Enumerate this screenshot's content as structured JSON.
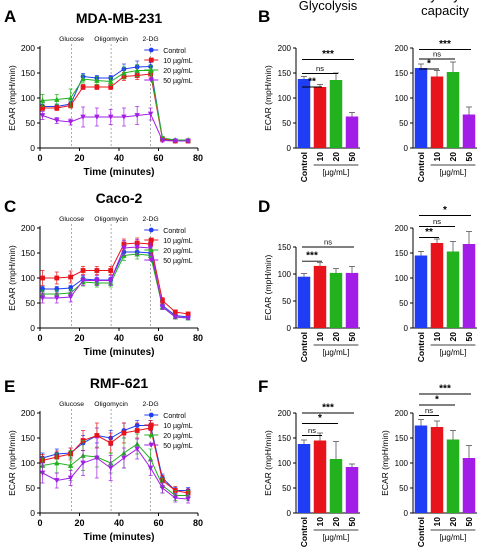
{
  "colors": {
    "control": "#1f3df5",
    "c10": "#e8141c",
    "c20": "#22b21e",
    "c50": "#a21ee6",
    "axis": "#000000",
    "dash": "#888888"
  },
  "chart_data": [
    {
      "panel": "A",
      "type": "line",
      "title": "MDA-MB-231",
      "xlabel": "Time (minutes)",
      "ylabel": "ECAR (mpH/min)",
      "xlim": [
        0,
        80
      ],
      "ylim": [
        0,
        200
      ],
      "xticks": [
        "0",
        "20",
        "40",
        "60",
        "80"
      ],
      "yticks": [
        "0",
        "50",
        "100",
        "150",
        "200"
      ],
      "annotations": [
        {
          "text": "Glucose",
          "x": 16
        },
        {
          "text": "Oligomycin",
          "x": 36
        },
        {
          "text": "2-DG",
          "x": 56
        }
      ],
      "x": [
        1.3,
        8.5,
        15.5,
        21.8,
        28.8,
        35.8,
        42.5,
        49.2,
        56,
        62,
        68.5,
        75
      ],
      "series": [
        {
          "name": "Control",
          "values": [
            83,
            83,
            88,
            143,
            140,
            140,
            158,
            162,
            163,
            19,
            15,
            15
          ],
          "errors": [
            5,
            5,
            5,
            6,
            5,
            5,
            10,
            12,
            8,
            3,
            2,
            2
          ]
        },
        {
          "name": "10 µg/mL",
          "values": [
            80,
            80,
            85,
            122,
            122,
            122,
            143,
            145,
            148,
            18,
            14,
            14
          ],
          "errors": [
            5,
            5,
            5,
            5,
            5,
            5,
            8,
            8,
            8,
            2,
            2,
            2
          ]
        },
        {
          "name": "20 µg/mL",
          "values": [
            95,
            97,
            100,
            138,
            135,
            133,
            150,
            155,
            155,
            20,
            16,
            16
          ],
          "errors": [
            12,
            10,
            18,
            8,
            8,
            8,
            12,
            12,
            10,
            3,
            2,
            2
          ]
        },
        {
          "name": "50 µg/mL",
          "values": [
            65,
            55,
            52,
            62,
            62,
            62,
            62,
            65,
            68,
            15,
            14,
            14
          ],
          "errors": [
            8,
            6,
            6,
            20,
            18,
            15,
            18,
            18,
            12,
            3,
            2,
            2
          ]
        }
      ]
    },
    {
      "panel": "B",
      "type": "bar",
      "title": "Glycolysis",
      "ylabel": "ECAR (mpH/min)",
      "categories": [
        "Control",
        "10",
        "20",
        "50"
      ],
      "group_label": "[µg/mL]",
      "ylim": [
        0,
        200
      ],
      "yticks": [
        "0",
        "50",
        "100",
        "150",
        "200"
      ],
      "values": [
        138,
        122,
        136,
        63
      ],
      "errors": [
        5,
        5,
        14,
        8
      ],
      "significance": [
        {
          "pair": [
            0,
            1
          ],
          "label": "**",
          "level": 0.61
        },
        {
          "pair": [
            0,
            2
          ],
          "label": "ns",
          "level": 0.745
        },
        {
          "pair": [
            0,
            3
          ],
          "label": "***",
          "level": 0.885
        }
      ]
    },
    {
      "panel": "B2",
      "type": "bar",
      "title": "Glycolytic capacity",
      "ylabel": "",
      "categories": [
        "Control",
        "10",
        "20",
        "50"
      ],
      "group_label": "[µg/mL]",
      "ylim": [
        0,
        200
      ],
      "yticks": [
        "0",
        "50",
        "100",
        "150",
        "200"
      ],
      "values": [
        160,
        143,
        152,
        67
      ],
      "errors": [
        8,
        12,
        20,
        15
      ],
      "significance": [
        {
          "pair": [
            0,
            1
          ],
          "label": "*",
          "level": 0.79
        },
        {
          "pair": [
            0,
            2
          ],
          "label": "ns",
          "level": 0.89
        },
        {
          "pair": [
            0,
            3
          ],
          "label": "***",
          "level": 0.985
        }
      ]
    },
    {
      "panel": "C",
      "type": "line",
      "title": "Caco-2",
      "xlabel": "Time (minutes)",
      "ylabel": "ECAR (mpH/min)",
      "xlim": [
        0,
        80
      ],
      "ylim": [
        0,
        200
      ],
      "xticks": [
        "0",
        "20",
        "40",
        "60",
        "80"
      ],
      "yticks": [
        "0",
        "50",
        "100",
        "150",
        "200"
      ],
      "annotations": [
        {
          "text": "Glucose",
          "x": 16
        },
        {
          "text": "Oligomycin",
          "x": 36
        },
        {
          "text": "2-DG",
          "x": 56
        }
      ],
      "x": [
        1.3,
        8.5,
        15.5,
        21.8,
        28.8,
        35.8,
        42.5,
        49.2,
        56,
        62,
        68.5,
        75
      ],
      "series": [
        {
          "name": "Control",
          "values": [
            78,
            78,
            80,
            98,
            96,
            96,
            152,
            152,
            150,
            45,
            25,
            22
          ],
          "errors": [
            5,
            5,
            5,
            6,
            5,
            5,
            8,
            8,
            8,
            5,
            3,
            3
          ]
        },
        {
          "name": "10 µg/mL",
          "values": [
            100,
            100,
            102,
            115,
            115,
            115,
            168,
            170,
            168,
            55,
            32,
            28
          ],
          "errors": [
            15,
            12,
            12,
            8,
            8,
            8,
            10,
            10,
            10,
            6,
            4,
            4
          ]
        },
        {
          "name": "20 µg/mL",
          "values": [
            68,
            68,
            70,
            92,
            90,
            90,
            145,
            148,
            145,
            42,
            22,
            20
          ],
          "errors": [
            8,
            8,
            8,
            8,
            8,
            8,
            10,
            10,
            10,
            5,
            3,
            3
          ]
        },
        {
          "name": "50 µg/mL",
          "values": [
            60,
            60,
            62,
            95,
            95,
            95,
            160,
            162,
            160,
            42,
            22,
            20
          ],
          "errors": [
            10,
            10,
            10,
            10,
            10,
            10,
            15,
            15,
            15,
            5,
            3,
            3
          ]
        }
      ]
    },
    {
      "panel": "D",
      "type": "bar",
      "title": "",
      "ylabel": "ECAR (mpH/min)",
      "categories": [
        "Control",
        "10",
        "20",
        "50"
      ],
      "group_label": "[µg/mL]",
      "ylim": [
        0,
        150
      ],
      "yticks": [
        "0",
        "50",
        "100",
        "150"
      ],
      "values": [
        95,
        115,
        102,
        102
      ],
      "errors": [
        6,
        6,
        8,
        12
      ],
      "significance": [
        {
          "pair": [
            0,
            1
          ],
          "label": "***",
          "level": 0.825
        },
        {
          "pair": [
            0,
            3
          ],
          "label": "ns",
          "level": 1.0
        }
      ]
    },
    {
      "panel": "D2",
      "type": "bar",
      "title": "",
      "ylabel": "",
      "categories": [
        "Control",
        "10",
        "20",
        "50"
      ],
      "group_label": "[µg/mL]",
      "ylim": [
        0,
        200
      ],
      "yticks": [
        "0",
        "50",
        "100",
        "150",
        "200"
      ],
      "values": [
        145,
        170,
        153,
        168
      ],
      "errors": [
        8,
        8,
        20,
        25
      ],
      "significance": [
        {
          "pair": [
            0,
            1
          ],
          "label": "**",
          "level": 0.905
        },
        {
          "pair": [
            0,
            2
          ],
          "label": "ns",
          "level": 1.015
        },
        {
          "pair": [
            0,
            3
          ],
          "label": "*",
          "level": 1.125
        }
      ]
    },
    {
      "panel": "E",
      "type": "line",
      "title": "RMF-621",
      "xlabel": "Time (minutes)",
      "ylabel": "ECAR (mpH/min)",
      "xlim": [
        0,
        80
      ],
      "ylim": [
        0,
        200
      ],
      "xticks": [
        "0",
        "20",
        "40",
        "60",
        "80"
      ],
      "yticks": [
        "0",
        "50",
        "100",
        "150",
        "200"
      ],
      "annotations": [
        {
          "text": "Glucose",
          "x": 16
        },
        {
          "text": "Oligomycin",
          "x": 36
        },
        {
          "text": "2-DG",
          "x": 56
        }
      ],
      "x": [
        1.3,
        8.5,
        15.5,
        21.8,
        28.8,
        35.8,
        42.5,
        49.2,
        56,
        62,
        68.5,
        75
      ],
      "series": [
        {
          "name": "Control",
          "values": [
            110,
            118,
            120,
            140,
            155,
            150,
            165,
            175,
            175,
            70,
            45,
            45
          ],
          "errors": [
            10,
            10,
            10,
            15,
            15,
            15,
            15,
            10,
            10,
            8,
            6,
            6
          ]
        },
        {
          "name": "10 µg/mL",
          "values": [
            105,
            112,
            118,
            145,
            155,
            140,
            160,
            165,
            170,
            65,
            45,
            40
          ],
          "errors": [
            12,
            12,
            12,
            20,
            25,
            20,
            20,
            15,
            15,
            10,
            8,
            8
          ]
        },
        {
          "name": "20 µg/mL",
          "values": [
            95,
            100,
            95,
            115,
            112,
            100,
            120,
            138,
            108,
            55,
            35,
            35
          ],
          "errors": [
            15,
            20,
            30,
            30,
            20,
            20,
            30,
            20,
            20,
            15,
            10,
            10
          ]
        },
        {
          "name": "50 µg/mL",
          "values": [
            80,
            65,
            70,
            100,
            110,
            90,
            110,
            128,
            90,
            50,
            30,
            28
          ],
          "errors": [
            20,
            15,
            15,
            25,
            40,
            25,
            20,
            20,
            15,
            10,
            8,
            8
          ]
        }
      ]
    },
    {
      "panel": "F",
      "type": "bar",
      "title": "",
      "ylabel": "ECAR (mpH/min)",
      "categories": [
        "Control",
        "10",
        "20",
        "50"
      ],
      "group_label": "[µg/mL]",
      "ylim": [
        0,
        200
      ],
      "yticks": [
        "0",
        "50",
        "100",
        "150",
        "200"
      ],
      "values": [
        138,
        145,
        108,
        92
      ],
      "errors": [
        8,
        15,
        35,
        6
      ],
      "significance": [
        {
          "pair": [
            0,
            1
          ],
          "label": "ns",
          "level": 0.775
        },
        {
          "pair": [
            0,
            2
          ],
          "label": "*",
          "level": 0.895
        },
        {
          "pair": [
            0,
            3
          ],
          "label": "***",
          "level": 1.0
        }
      ]
    },
    {
      "panel": "F2",
      "type": "bar",
      "title": "",
      "ylabel": "ECAR (mpH/min)",
      "categories": [
        "Control",
        "10",
        "20",
        "50"
      ],
      "group_label": "[µg/mL]",
      "ylim": [
        0,
        200
      ],
      "yticks": [
        "0",
        "50",
        "100",
        "150",
        "200"
      ],
      "values": [
        175,
        172,
        147,
        110
      ],
      "errors": [
        12,
        12,
        18,
        25
      ],
      "significance": [
        {
          "pair": [
            0,
            1
          ],
          "label": "ns",
          "level": 0.975
        },
        {
          "pair": [
            0,
            2
          ],
          "label": "*",
          "level": 1.08
        },
        {
          "pair": [
            0,
            3
          ],
          "label": "***",
          "level": 1.19
        }
      ]
    }
  ],
  "legend_position": "top-right"
}
